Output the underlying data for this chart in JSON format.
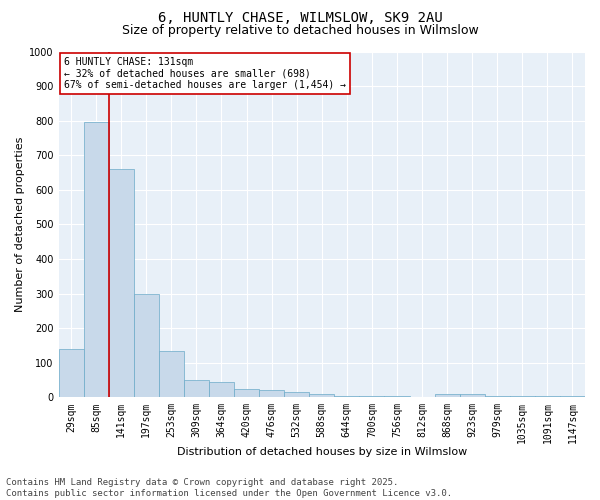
{
  "title1": "6, HUNTLY CHASE, WILMSLOW, SK9 2AU",
  "title2": "Size of property relative to detached houses in Wilmslow",
  "xlabel": "Distribution of detached houses by size in Wilmslow",
  "ylabel": "Number of detached properties",
  "categories": [
    "29sqm",
    "85sqm",
    "141sqm",
    "197sqm",
    "253sqm",
    "309sqm",
    "364sqm",
    "420sqm",
    "476sqm",
    "532sqm",
    "588sqm",
    "644sqm",
    "700sqm",
    "756sqm",
    "812sqm",
    "868sqm",
    "923sqm",
    "979sqm",
    "1035sqm",
    "1091sqm",
    "1147sqm"
  ],
  "values": [
    140,
    795,
    660,
    300,
    135,
    50,
    45,
    25,
    20,
    15,
    10,
    5,
    5,
    5,
    0,
    10,
    10,
    5,
    5,
    5,
    5
  ],
  "bar_color": "#c8d9ea",
  "bar_edge_color": "#6aaac8",
  "vline_color": "#cc0000",
  "annotation_text": "6 HUNTLY CHASE: 131sqm\n← 32% of detached houses are smaller (698)\n67% of semi-detached houses are larger (1,454) →",
  "annotation_box_facecolor": "#ffffff",
  "annotation_box_edgecolor": "#cc0000",
  "ylim": [
    0,
    1000
  ],
  "yticks": [
    0,
    100,
    200,
    300,
    400,
    500,
    600,
    700,
    800,
    900,
    1000
  ],
  "bg_color": "#ffffff",
  "plot_bg_color": "#e8f0f8",
  "grid_color": "#ffffff",
  "title_fontsize": 10,
  "subtitle_fontsize": 9,
  "axis_label_fontsize": 8,
  "tick_fontsize": 7,
  "annotation_fontsize": 7,
  "footer_fontsize": 6.5,
  "footer1": "Contains HM Land Registry data © Crown copyright and database right 2025.",
  "footer2": "Contains public sector information licensed under the Open Government Licence v3.0."
}
